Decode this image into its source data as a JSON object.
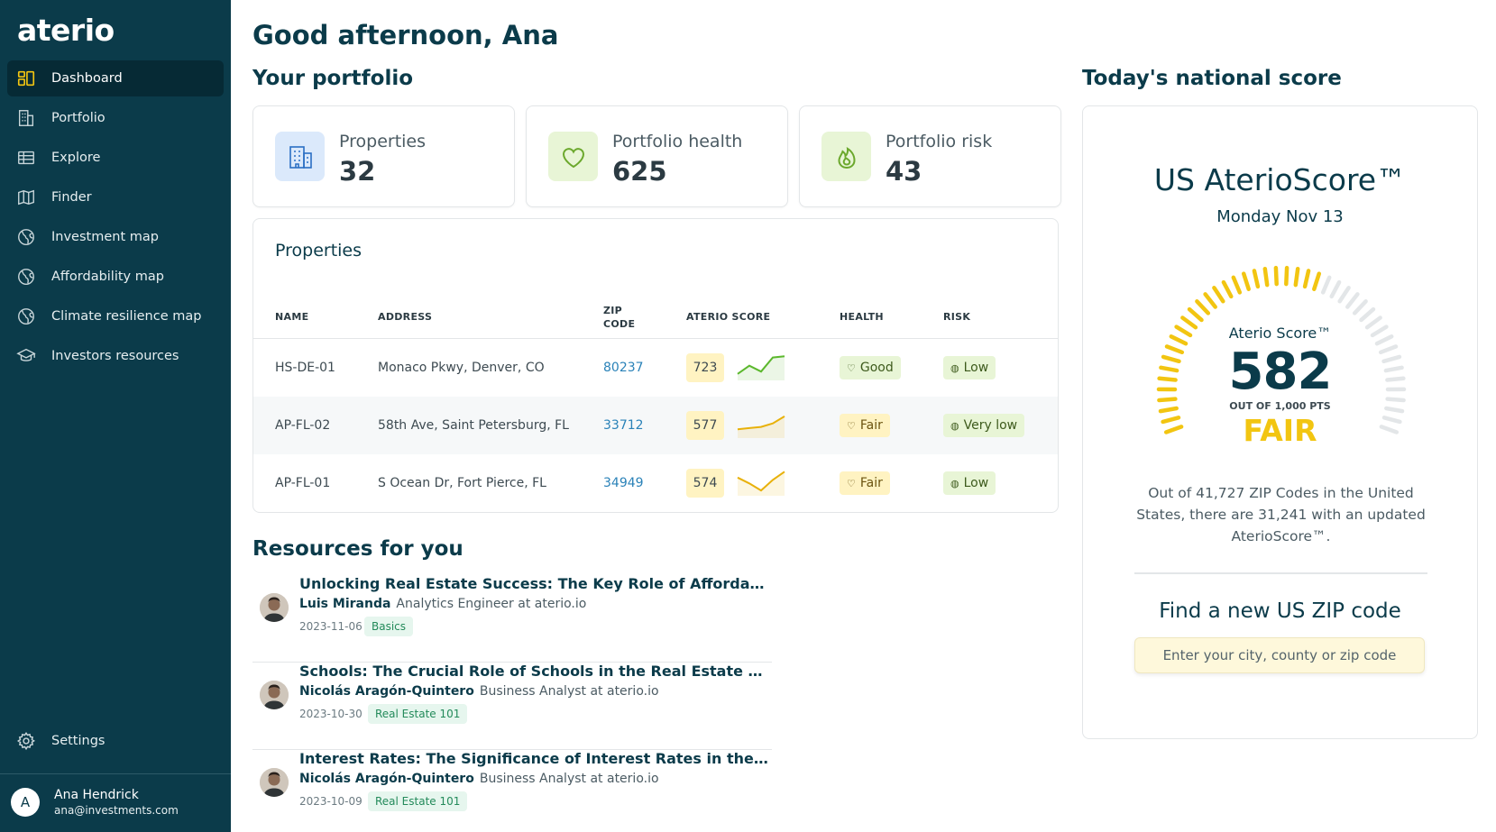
{
  "app": {
    "logo": "aterio"
  },
  "sidebar": {
    "items": [
      {
        "label": "Dashboard",
        "icon": "dashboard-icon",
        "active": true
      },
      {
        "label": "Portfolio",
        "icon": "building-icon"
      },
      {
        "label": "Explore",
        "icon": "table-icon"
      },
      {
        "label": "Finder",
        "icon": "map-icon"
      },
      {
        "label": "Investment map",
        "icon": "globe-icon"
      },
      {
        "label": "Affordability map",
        "icon": "globe-icon"
      },
      {
        "label": "Climate resilience map",
        "icon": "globe-icon"
      },
      {
        "label": "Investors resources",
        "icon": "graduation-cap-icon"
      }
    ],
    "settings": {
      "label": "Settings",
      "icon": "gear-icon"
    },
    "user": {
      "initial": "A",
      "name": "Ana Hendrick",
      "email": "ana@investments.com"
    }
  },
  "greeting": "Good afternoon, Ana",
  "portfolio": {
    "heading": "Your portfolio",
    "stats": [
      {
        "label": "Properties",
        "value": "32",
        "icon": "building-icon",
        "bg": "#dbe9fb",
        "fg": "#2a6fc4"
      },
      {
        "label": "Portfolio health",
        "value": "625",
        "icon": "heart-icon",
        "bg": "#e8f5d6",
        "fg": "#6ba82c"
      },
      {
        "label": "Portfolio risk",
        "value": "43",
        "icon": "fire-icon",
        "bg": "#e8f5d6",
        "fg": "#6ba82c"
      }
    ]
  },
  "properties": {
    "title": "Properties",
    "columns": [
      "NAME",
      "ADDRESS",
      "ZIP CODE",
      "ATERIO SCORE",
      "HEALTH",
      "RISK"
    ],
    "rows": [
      {
        "name": "HS-DE-01",
        "address": "Monaco Pkwy, Denver, CO",
        "zip": "80237",
        "score": "723",
        "trend": [
          0.2,
          0.55,
          0.3,
          0.9,
          0.95
        ],
        "trend_color": "#5cb82e",
        "health": "Good",
        "risk": "Low"
      },
      {
        "name": "AP-FL-02",
        "address": "58th Ave, Saint Petersburg, FL",
        "zip": "33712",
        "score": "577",
        "trend": [
          0.3,
          0.35,
          0.4,
          0.55,
          0.85
        ],
        "trend_color": "#e8b10a",
        "health": "Fair",
        "risk": "Very low"
      },
      {
        "name": "AP-FL-01",
        "address": "S Ocean Dr, Fort Pierce, FL",
        "zip": "34949",
        "score": "574",
        "trend": [
          0.7,
          0.45,
          0.15,
          0.6,
          0.95
        ],
        "trend_color": "#e8b10a",
        "health": "Fair",
        "risk": "Low"
      }
    ]
  },
  "resources": {
    "heading": "Resources for you",
    "items": [
      {
        "title": "Unlocking Real Estate Success: The Key Role of Affordability ...",
        "author": "Luis Miranda",
        "role": "Analytics Engineer at aterio.io",
        "date": "2023-11-06",
        "tag": "Basics"
      },
      {
        "title": "Schools: The Crucial Role of Schools in the Real Estate Market",
        "author": "Nicolás Aragón-Quintero",
        "role": "Business Analyst at aterio.io",
        "date": "2023-10-30",
        "tag": "Real Estate 101"
      },
      {
        "title": "Interest Rates: The Significance of Interest Rates in the Real Estat...",
        "author": "Nicolás Aragón-Quintero",
        "role": "Business Analyst at aterio.io",
        "date": "2023-10-09",
        "tag": "Real Estate 101"
      }
    ]
  },
  "national": {
    "heading": "Today's national score",
    "title": "US AterioScore™",
    "date": "Monday Nov 13",
    "gauge": {
      "label": "Aterio Score™",
      "score": "582",
      "fraction": 0.582,
      "out_of": "OUT OF 1,000 PTS",
      "rating": "FAIR",
      "fill_color": "#f2c511",
      "empty_color": "#e3e6e8"
    },
    "description": "Out of 41,727 ZIP Codes in the United States, there are 31,241 with an updated AterioScore™.",
    "find_title": "Find a new US ZIP code",
    "find_placeholder": "Enter your city, county or zip code"
  }
}
